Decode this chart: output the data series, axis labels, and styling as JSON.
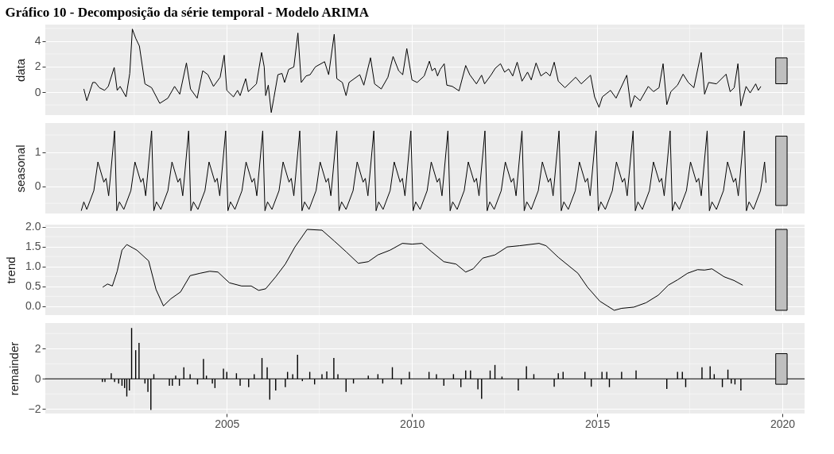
{
  "chart_data": [
    {
      "type": "line",
      "title": "Gráfico 10 - Decomposição da série temporal - Modelo ARIMA",
      "ylabel": "data",
      "xlim": [
        2000.1,
        2020.6
      ],
      "xticks": [
        2005,
        2010,
        2015,
        2020
      ],
      "ylim": [
        -1.8,
        5.3
      ],
      "yticks": [
        0,
        2,
        4
      ],
      "grid": true,
      "tick_labels": "y",
      "x": [
        2001.14,
        2001.22,
        2001.38,
        2001.45,
        2001.56,
        2001.7,
        2001.8,
        2001.96,
        2002.04,
        2002.12,
        2002.28,
        2002.38,
        2002.45,
        2002.54,
        2002.64,
        2002.79,
        2002.97,
        2003.19,
        2003.41,
        2003.59,
        2003.73,
        2003.91,
        2004.02,
        2004.2,
        2004.35,
        2004.49,
        2004.64,
        2004.82,
        2004.93,
        2005.0,
        2005.18,
        2005.29,
        2005.36,
        2005.51,
        2005.58,
        2005.8,
        2005.94,
        2006.01,
        2006.05,
        2006.12,
        2006.2,
        2006.27,
        2006.38,
        2006.49,
        2006.56,
        2006.67,
        2006.81,
        2006.92,
        2007.01,
        2007.14,
        2007.25,
        2007.39,
        2007.64,
        2007.75,
        2007.9,
        2007.97,
        2008.12,
        2008.22,
        2008.3,
        2008.59,
        2008.7,
        2008.88,
        2008.99,
        2009.17,
        2009.35,
        2009.49,
        2009.64,
        2009.75,
        2009.86,
        2010.0,
        2010.14,
        2010.33,
        2010.47,
        2010.54,
        2010.62,
        2010.69,
        2010.76,
        2010.87,
        2010.94,
        2011.09,
        2011.27,
        2011.45,
        2011.56,
        2011.74,
        2011.88,
        2011.96,
        2012.14,
        2012.25,
        2012.39,
        2012.5,
        2012.61,
        2012.72,
        2012.84,
        2012.97,
        2013.12,
        2013.22,
        2013.35,
        2013.48,
        2013.62,
        2013.73,
        2013.84,
        2013.95,
        2014.13,
        2014.42,
        2014.57,
        2014.82,
        2014.93,
        2015.05,
        2015.14,
        2015.36,
        2015.51,
        2015.8,
        2015.91,
        2016.01,
        2016.16,
        2016.38,
        2016.52,
        2016.67,
        2016.78,
        2016.88,
        2016.99,
        2017.17,
        2017.32,
        2017.46,
        2017.61,
        2017.72,
        2017.81,
        2017.9,
        2018.01,
        2018.22,
        2018.48,
        2018.59,
        2018.7,
        2018.8,
        2018.88,
        2019.02,
        2019.13,
        2019.28,
        2019.35,
        2019.42
      ],
      "series": [
        {
          "color": "#000000",
          "values": [
            0.25,
            -0.67,
            0.76,
            0.76,
            0.35,
            0.14,
            0.45,
            1.94,
            0.14,
            0.45,
            -0.37,
            1.47,
            4.95,
            4.23,
            3.62,
            0.65,
            0.35,
            -0.88,
            -0.47,
            0.45,
            -0.16,
            2.29,
            0.25,
            -0.47,
            1.68,
            1.37,
            0.45,
            1.17,
            2.9,
            0.14,
            -0.37,
            0.14,
            -0.27,
            1.06,
            0.04,
            0.65,
            3.11,
            1.98,
            -0.27,
            0.55,
            -1.6,
            -0.47,
            1.37,
            1.47,
            0.76,
            1.78,
            1.98,
            4.64,
            0.76,
            1.27,
            1.37,
            1.98,
            2.39,
            1.37,
            4.54,
            1.06,
            0.76,
            -0.27,
            0.76,
            1.37,
            0.55,
            2.7,
            0.65,
            0.25,
            1.17,
            2.8,
            1.68,
            1.37,
            3.42,
            0.96,
            0.76,
            1.27,
            2.43,
            1.68,
            1.88,
            1.27,
            1.78,
            2.23,
            0.55,
            0.45,
            0.1,
            2.09,
            1.37,
            0.65,
            1.33,
            0.65,
            1.37,
            1.88,
            2.23,
            1.57,
            1.82,
            1.27,
            2.35,
            0.86,
            1.57,
            0.96,
            2.29,
            1.27,
            1.57,
            1.27,
            2.35,
            0.86,
            0.35,
            1.17,
            0.65,
            1.33,
            -0.37,
            -1.19,
            -0.37,
            0.14,
            -0.47,
            1.33,
            -1.19,
            -0.27,
            -0.67,
            0.45,
            0.04,
            0.35,
            2.23,
            -0.98,
            0.04,
            0.55,
            1.41,
            0.76,
            0.35,
            1.88,
            3.11,
            -0.16,
            0.76,
            0.65,
            1.41,
            0.04,
            0.35,
            2.23,
            -1.08,
            0.45,
            -0.06,
            0.65,
            0.14,
            0.45
          ]
        }
      ]
    },
    {
      "type": "line",
      "ylabel": "seasonal",
      "xlim": [
        2000.1,
        2020.6
      ],
      "xticks": [
        2005,
        2010,
        2015,
        2020
      ],
      "ylim": [
        -0.8,
        1.85
      ],
      "yticks": [
        0,
        1
      ],
      "grid": true,
      "tick_labels": "y",
      "x": [
        2001.07,
        2001.14,
        2001.22,
        2001.41,
        2001.52,
        2001.68,
        2001.74,
        2001.81,
        2001.97,
        2002.03,
        2002.1,
        2002.22,
        2002.41,
        2002.52,
        2002.68,
        2002.74,
        2002.81,
        2002.97,
        2003.03,
        2003.1,
        2003.22,
        2003.41,
        2003.52,
        2003.68,
        2003.74,
        2003.81,
        2003.97,
        2004.03,
        2004.1,
        2004.22,
        2004.41,
        2004.52,
        2004.68,
        2004.74,
        2004.81,
        2004.97,
        2005.03,
        2005.1,
        2005.22,
        2005.41,
        2005.52,
        2005.68,
        2005.74,
        2005.81,
        2005.97,
        2006.03,
        2006.1,
        2006.22,
        2006.41,
        2006.52,
        2006.68,
        2006.74,
        2006.81,
        2006.97,
        2007.03,
        2007.1,
        2007.22,
        2007.41,
        2007.52,
        2007.68,
        2007.74,
        2007.81,
        2007.97,
        2008.03,
        2008.1,
        2008.22,
        2008.41,
        2008.52,
        2008.68,
        2008.74,
        2008.81,
        2008.97,
        2009.03,
        2009.1,
        2009.22,
        2009.41,
        2009.52,
        2009.68,
        2009.74,
        2009.81,
        2009.97,
        2010.03,
        2010.1,
        2010.22,
        2010.41,
        2010.52,
        2010.68,
        2010.74,
        2010.81,
        2010.97,
        2011.03,
        2011.1,
        2011.22,
        2011.41,
        2011.52,
        2011.68,
        2011.74,
        2011.81,
        2011.97,
        2012.03,
        2012.1,
        2012.22,
        2012.41,
        2012.52,
        2012.68,
        2012.74,
        2012.81,
        2012.97,
        2013.03,
        2013.1,
        2013.22,
        2013.41,
        2013.52,
        2013.68,
        2013.74,
        2013.81,
        2013.97,
        2014.03,
        2014.1,
        2014.22,
        2014.41,
        2014.52,
        2014.68,
        2014.74,
        2014.81,
        2014.97,
        2015.03,
        2015.1,
        2015.22,
        2015.41,
        2015.52,
        2015.68,
        2015.74,
        2015.81,
        2015.97,
        2016.03,
        2016.1,
        2016.22,
        2016.41,
        2016.52,
        2016.68,
        2016.74,
        2016.81,
        2016.97,
        2017.03,
        2017.1,
        2017.22,
        2017.41,
        2017.52,
        2017.68,
        2017.74,
        2017.81,
        2017.97,
        2018.03,
        2018.1,
        2018.22,
        2018.41,
        2018.52,
        2018.68,
        2018.74,
        2018.81,
        2018.97,
        2019.03,
        2019.1,
        2019.22,
        2019.41,
        2019.52,
        2019.56
      ],
      "series": [
        {
          "color": "#000000",
          "values": [
            -0.72,
            -0.46,
            -0.68,
            -0.13,
            0.71,
            0.12,
            0.23,
            -0.28,
            1.62,
            -0.72,
            -0.46,
            -0.68,
            -0.13,
            0.71,
            0.12,
            0.23,
            -0.28,
            1.62,
            -0.72,
            -0.46,
            -0.68,
            -0.13,
            0.71,
            0.12,
            0.23,
            -0.28,
            1.62,
            -0.72,
            -0.46,
            -0.68,
            -0.13,
            0.71,
            0.12,
            0.23,
            -0.28,
            1.62,
            -0.72,
            -0.46,
            -0.68,
            -0.13,
            0.71,
            0.12,
            0.23,
            -0.28,
            1.62,
            -0.72,
            -0.46,
            -0.68,
            -0.13,
            0.71,
            0.12,
            0.23,
            -0.28,
            1.62,
            -0.72,
            -0.46,
            -0.68,
            -0.13,
            0.71,
            0.12,
            0.23,
            -0.28,
            1.62,
            -0.72,
            -0.46,
            -0.68,
            -0.13,
            0.71,
            0.12,
            0.23,
            -0.28,
            1.62,
            -0.72,
            -0.46,
            -0.68,
            -0.13,
            0.71,
            0.12,
            0.23,
            -0.28,
            1.62,
            -0.72,
            -0.46,
            -0.68,
            -0.13,
            0.71,
            0.12,
            0.23,
            -0.28,
            1.62,
            -0.72,
            -0.46,
            -0.68,
            -0.13,
            0.71,
            0.12,
            0.23,
            -0.28,
            1.62,
            -0.72,
            -0.46,
            -0.68,
            -0.13,
            0.71,
            0.12,
            0.23,
            -0.28,
            1.62,
            -0.72,
            -0.46,
            -0.68,
            -0.13,
            0.71,
            0.12,
            0.23,
            -0.28,
            1.62,
            -0.72,
            -0.46,
            -0.68,
            -0.13,
            0.71,
            0.12,
            0.23,
            -0.28,
            1.62,
            -0.72,
            -0.46,
            -0.68,
            -0.13,
            0.71,
            0.12,
            0.23,
            -0.28,
            1.62,
            -0.72,
            -0.46,
            -0.68,
            -0.13,
            0.71,
            0.12,
            0.23,
            -0.28,
            1.62,
            -0.72,
            -0.46,
            -0.68,
            -0.13,
            0.71,
            0.12,
            0.23,
            -0.28,
            1.62,
            -0.72,
            -0.46,
            -0.68,
            -0.13,
            0.71,
            0.12,
            0.23,
            -0.28,
            1.62,
            -0.72,
            -0.46,
            -0.68,
            -0.13,
            0.71,
            0.1
          ]
        }
      ]
    },
    {
      "type": "line",
      "ylabel": "trend",
      "xlim": [
        2000.1,
        2020.6
      ],
      "xticks": [
        2005,
        2010,
        2015,
        2020
      ],
      "ylim": [
        -0.22,
        2.05
      ],
      "yticks": [
        {
          "value": 0,
          "label": "0.0"
        },
        {
          "value": 0.5,
          "label": "0.5"
        },
        {
          "value": 1,
          "label": "1.0"
        },
        {
          "value": 1.5,
          "label": "1.5"
        },
        {
          "value": 2,
          "label": "2.0"
        }
      ],
      "grid": true,
      "tick_labels": "y",
      "x": [
        2001.65,
        2001.78,
        2001.91,
        2002.04,
        2002.17,
        2002.3,
        2002.57,
        2002.89,
        2003.09,
        2003.29,
        2003.49,
        2003.75,
        2004.01,
        2004.28,
        2004.54,
        2004.76,
        2005.07,
        2005.4,
        2005.66,
        2005.86,
        2006.05,
        2006.32,
        2006.58,
        2006.84,
        2007.17,
        2007.57,
        2007.9,
        2008.22,
        2008.55,
        2008.82,
        2009.08,
        2009.41,
        2009.74,
        2010.0,
        2010.27,
        2010.53,
        2010.86,
        2011.19,
        2011.45,
        2011.65,
        2011.91,
        2012.24,
        2012.57,
        2012.9,
        2013.43,
        2013.62,
        2013.95,
        2014.48,
        2014.74,
        2015.07,
        2015.46,
        2015.66,
        2015.99,
        2016.32,
        2016.65,
        2016.92,
        2017.18,
        2017.44,
        2017.71,
        2017.9,
        2018.1,
        2018.43,
        2018.69,
        2018.93
      ],
      "series": [
        {
          "color": "#000000",
          "values": [
            0.48,
            0.56,
            0.51,
            0.88,
            1.41,
            1.55,
            1.41,
            1.14,
            0.42,
            0.01,
            0.19,
            0.36,
            0.77,
            0.83,
            0.88,
            0.86,
            0.59,
            0.51,
            0.51,
            0.4,
            0.44,
            0.74,
            1.06,
            1.49,
            1.93,
            1.91,
            1.64,
            1.37,
            1.08,
            1.12,
            1.29,
            1.41,
            1.58,
            1.56,
            1.58,
            1.37,
            1.12,
            1.06,
            0.86,
            0.94,
            1.21,
            1.29,
            1.49,
            1.52,
            1.58,
            1.52,
            1.23,
            0.83,
            0.48,
            0.13,
            -0.1,
            -0.05,
            -0.02,
            0.09,
            0.28,
            0.53,
            0.67,
            0.83,
            0.92,
            0.91,
            0.94,
            0.74,
            0.65,
            0.53
          ]
        }
      ]
    },
    {
      "type": "bar",
      "ylabel": "remainder",
      "xlim": [
        2000.1,
        2020.6
      ],
      "xticks": [
        2005,
        2010,
        2015,
        2020
      ],
      "ylim": [
        -2.3,
        3.7
      ],
      "yticks": [
        -2,
        0,
        2
      ],
      "grid": true,
      "ref_lines": [
        {
          "axis": "y",
          "value": 0,
          "color": "#000000"
        }
      ],
      "x": [
        2001.64,
        2001.71,
        2001.88,
        2001.97,
        2002.08,
        2002.17,
        2002.24,
        2002.3,
        2002.37,
        2002.43,
        2002.54,
        2002.63,
        2002.79,
        2002.87,
        2002.95,
        2003.03,
        2003.45,
        2003.53,
        2003.62,
        2003.72,
        2003.84,
        2004.01,
        2004.21,
        2004.37,
        2004.45,
        2004.61,
        2004.68,
        2004.91,
        2005.0,
        2005.26,
        2005.36,
        2005.59,
        2005.74,
        2005.95,
        2006.09,
        2006.16,
        2006.32,
        2006.58,
        2006.64,
        2006.78,
        2006.91,
        2007.04,
        2007.24,
        2007.37,
        2007.57,
        2007.7,
        2007.89,
        2008.0,
        2008.22,
        2008.42,
        2008.82,
        2009.08,
        2009.21,
        2009.47,
        2009.71,
        2009.93,
        2010.46,
        2010.66,
        2010.86,
        2011.12,
        2011.32,
        2011.45,
        2011.58,
        2011.78,
        2011.88,
        2012.11,
        2012.24,
        2012.43,
        2012.87,
        2013.09,
        2013.29,
        2013.84,
        2013.95,
        2014.08,
        2014.67,
        2014.84,
        2015.13,
        2015.26,
        2015.33,
        2015.66,
        2016.05,
        2016.88,
        2017.17,
        2017.3,
        2017.39,
        2017.83,
        2018.05,
        2018.16,
        2018.38,
        2018.53,
        2018.62,
        2018.72,
        2018.88
      ],
      "series": [
        {
          "color": "#000000",
          "values": [
            -0.21,
            -0.21,
            0.37,
            -0.21,
            -0.31,
            -0.46,
            -0.61,
            -1.17,
            -0.77,
            3.37,
            1.9,
            2.39,
            -0.31,
            -0.86,
            -2.06,
            0.31,
            -0.46,
            -0.46,
            0.21,
            -0.46,
            0.77,
            0.31,
            -0.37,
            1.32,
            0.21,
            -0.31,
            -0.61,
            0.67,
            0.46,
            0.37,
            -0.46,
            -0.55,
            0.31,
            1.38,
            0.77,
            -1.38,
            -0.77,
            -0.55,
            0.46,
            0.31,
            1.6,
            -0.15,
            0.46,
            -0.37,
            0.31,
            0.49,
            1.38,
            0.31,
            -0.86,
            -0.31,
            0.21,
            0.31,
            -0.31,
            0.77,
            -0.37,
            0.46,
            0.46,
            0.31,
            -0.46,
            0.31,
            -0.55,
            0.55,
            0.55,
            -0.7,
            -1.32,
            0.55,
            0.92,
            0.15,
            -0.77,
            0.83,
            0.31,
            -0.52,
            0.37,
            0.46,
            0.46,
            -0.52,
            0.46,
            0.46,
            -0.55,
            0.46,
            0.55,
            -0.67,
            0.46,
            0.46,
            -0.55,
            0.77,
            0.83,
            0.31,
            -0.55,
            0.61,
            -0.31,
            -0.37,
            -0.77
          ]
        }
      ]
    }
  ]
}
